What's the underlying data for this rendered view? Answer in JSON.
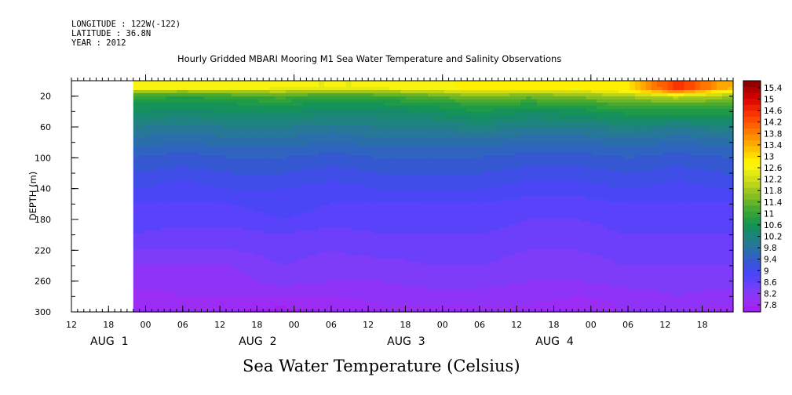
{
  "header": {
    "longitude": "LONGITUDE : 122W(-122)",
    "latitude": "LATITUDE : 36.8N",
    "year": "YEAR : 2012"
  },
  "chart_data": {
    "type": "heatmap",
    "title": "Hourly Gridded MBARI Mooring M1 Sea Water Temperature and Salinity Observations",
    "variable_label": "Sea Water Temperature (Celsius)",
    "ylabel": "DEPTH (m)",
    "y_axis": {
      "range": [
        0,
        300
      ],
      "inverted": true,
      "ticks": [
        20,
        60,
        100,
        140,
        180,
        220,
        260,
        300
      ],
      "minor_step": 20
    },
    "x_axis": {
      "unit": "hours since 2012-08-01T00:00",
      "range": [
        12,
        119
      ],
      "hour_ticks": [
        {
          "h": 12,
          "label": "12"
        },
        {
          "h": 18,
          "label": "18"
        },
        {
          "h": 24,
          "label": "00"
        },
        {
          "h": 30,
          "label": "06"
        },
        {
          "h": 36,
          "label": "12"
        },
        {
          "h": 42,
          "label": "18"
        },
        {
          "h": 48,
          "label": "00"
        },
        {
          "h": 54,
          "label": "06"
        },
        {
          "h": 60,
          "label": "12"
        },
        {
          "h": 66,
          "label": "18"
        },
        {
          "h": 72,
          "label": "00"
        },
        {
          "h": 78,
          "label": "06"
        },
        {
          "h": 84,
          "label": "12"
        },
        {
          "h": 90,
          "label": "18"
        },
        {
          "h": 96,
          "label": "00"
        },
        {
          "h": 102,
          "label": "06"
        },
        {
          "h": 108,
          "label": "12"
        },
        {
          "h": 114,
          "label": "18"
        }
      ],
      "day_labels": [
        {
          "h": 12,
          "label": "AUG  1"
        },
        {
          "h": 36,
          "label": "AUG  2"
        },
        {
          "h": 60,
          "label": "AUG  3"
        },
        {
          "h": 84,
          "label": "AUG  4"
        }
      ],
      "data_start_h": 22
    },
    "colorbar": {
      "labels": [
        "15.4",
        "15",
        "14.6",
        "14.2",
        "13.8",
        "13.4",
        "13",
        "12.6",
        "12.2",
        "11.8",
        "11.4",
        "11",
        "10.6",
        "10.2",
        "9.8",
        "9.4",
        "9",
        "8.6",
        "8.2",
        "7.8"
      ],
      "levels": [
        {
          "min": 7.8,
          "color": "#a020f0"
        },
        {
          "min": 8.0,
          "color": "#9a2cf4"
        },
        {
          "min": 8.2,
          "color": "#8f34f6"
        },
        {
          "min": 8.4,
          "color": "#7f3cf8"
        },
        {
          "min": 8.6,
          "color": "#6c3ffa"
        },
        {
          "min": 8.8,
          "color": "#5a42fb"
        },
        {
          "min": 9.0,
          "color": "#4a46f5"
        },
        {
          "min": 9.2,
          "color": "#3e4ee6"
        },
        {
          "min": 9.4,
          "color": "#3558d2"
        },
        {
          "min": 9.6,
          "color": "#2f64bf"
        },
        {
          "min": 9.8,
          "color": "#2a6eab"
        },
        {
          "min": 10.0,
          "color": "#267896"
        },
        {
          "min": 10.2,
          "color": "#1f8280"
        },
        {
          "min": 10.4,
          "color": "#188a6c"
        },
        {
          "min": 10.6,
          "color": "#14925a"
        },
        {
          "min": 10.8,
          "color": "#1e9a48"
        },
        {
          "min": 11.0,
          "color": "#32a23a"
        },
        {
          "min": 11.2,
          "color": "#4aaa30"
        },
        {
          "min": 11.4,
          "color": "#66b42a"
        },
        {
          "min": 11.6,
          "color": "#82be24"
        },
        {
          "min": 11.8,
          "color": "#9ec81e"
        },
        {
          "min": 12.0,
          "color": "#bad41a"
        },
        {
          "min": 12.2,
          "color": "#d2de18"
        },
        {
          "min": 12.4,
          "color": "#e6ea14"
        },
        {
          "min": 12.6,
          "color": "#f6f410"
        },
        {
          "min": 12.8,
          "color": "#fff000"
        },
        {
          "min": 13.0,
          "color": "#ffd800"
        },
        {
          "min": 13.2,
          "color": "#ffc000"
        },
        {
          "min": 13.4,
          "color": "#ffa800"
        },
        {
          "min": 13.6,
          "color": "#ff9000"
        },
        {
          "min": 13.8,
          "color": "#ff7800"
        },
        {
          "min": 14.0,
          "color": "#ff6000"
        },
        {
          "min": 14.2,
          "color": "#ff4800"
        },
        {
          "min": 14.4,
          "color": "#f83400"
        },
        {
          "min": 14.6,
          "color": "#ee2000"
        },
        {
          "min": 14.8,
          "color": "#e00c00"
        },
        {
          "min": 15.0,
          "color": "#cc0000"
        },
        {
          "min": 15.2,
          "color": "#b00000"
        },
        {
          "min": 15.4,
          "color": "#900000"
        }
      ]
    },
    "depths_m": [
      10,
      15,
      20,
      30,
      40,
      60,
      80,
      100,
      120,
      140,
      160,
      180,
      200,
      220,
      240,
      260,
      280,
      300
    ],
    "times_h": [
      22,
      30,
      38,
      46,
      54,
      62,
      70,
      78,
      86,
      94,
      102,
      110,
      118
    ],
    "temperature": [
      [
        12.8,
        12.7,
        12.7,
        12.6,
        12.6,
        12.6,
        12.7,
        12.9,
        12.9,
        12.8,
        13.0,
        14.6,
        13.4
      ],
      [
        11.8,
        11.6,
        11.8,
        11.9,
        11.7,
        11.8,
        12.0,
        12.3,
        12.1,
        12.2,
        12.6,
        13.6,
        12.6
      ],
      [
        11.2,
        11.0,
        11.2,
        11.3,
        11.1,
        11.2,
        11.4,
        11.7,
        11.5,
        11.7,
        11.9,
        12.2,
        11.9
      ],
      [
        10.8,
        10.7,
        10.8,
        10.9,
        10.7,
        10.8,
        10.9,
        11.1,
        11.0,
        11.1,
        11.3,
        11.4,
        11.3
      ],
      [
        10.6,
        10.5,
        10.6,
        10.6,
        10.5,
        10.5,
        10.6,
        10.8,
        10.6,
        10.7,
        10.9,
        10.9,
        10.9
      ],
      [
        10.2,
        10.1,
        10.2,
        10.2,
        10.1,
        10.2,
        10.2,
        10.3,
        10.2,
        10.2,
        10.3,
        10.2,
        10.3
      ],
      [
        9.9,
        9.8,
        9.9,
        9.9,
        9.8,
        9.9,
        9.9,
        9.9,
        9.8,
        9.8,
        9.9,
        9.8,
        9.9
      ],
      [
        9.6,
        9.5,
        9.6,
        9.6,
        9.5,
        9.6,
        9.6,
        9.6,
        9.5,
        9.5,
        9.6,
        9.5,
        9.6
      ],
      [
        9.4,
        9.3,
        9.4,
        9.4,
        9.3,
        9.4,
        9.4,
        9.4,
        9.3,
        9.3,
        9.4,
        9.3,
        9.4
      ],
      [
        9.2,
        9.1,
        9.2,
        9.2,
        9.1,
        9.2,
        9.2,
        9.2,
        9.1,
        9.1,
        9.2,
        9.1,
        9.2
      ],
      [
        9.0,
        9.0,
        9.0,
        9.1,
        9.0,
        9.0,
        9.0,
        9.0,
        8.9,
        8.9,
        9.0,
        9.0,
        9.0
      ],
      [
        8.9,
        8.9,
        8.9,
        9.0,
        8.9,
        8.9,
        8.9,
        8.9,
        8.8,
        8.8,
        8.9,
        8.9,
        8.9
      ],
      [
        8.8,
        8.7,
        8.7,
        8.8,
        8.7,
        8.8,
        8.8,
        8.8,
        8.7,
        8.7,
        8.8,
        8.8,
        8.8
      ],
      [
        8.6,
        8.6,
        8.6,
        8.7,
        8.6,
        8.7,
        8.7,
        8.7,
        8.6,
        8.6,
        8.7,
        8.7,
        8.7
      ],
      [
        8.4,
        8.4,
        8.4,
        8.6,
        8.5,
        8.5,
        8.6,
        8.6,
        8.5,
        8.5,
        8.6,
        8.6,
        8.6
      ],
      [
        8.3,
        8.3,
        8.3,
        8.5,
        8.4,
        8.4,
        8.5,
        8.5,
        8.4,
        8.4,
        8.5,
        8.5,
        8.5
      ],
      [
        8.1,
        8.2,
        8.2,
        8.2,
        8.2,
        8.3,
        8.3,
        8.3,
        8.3,
        8.2,
        8.3,
        8.4,
        8.3
      ],
      [
        8.0,
        8.0,
        8.0,
        7.9,
        8.0,
        8.1,
        8.1,
        8.1,
        8.1,
        8.0,
        8.2,
        8.2,
        8.1
      ]
    ]
  }
}
